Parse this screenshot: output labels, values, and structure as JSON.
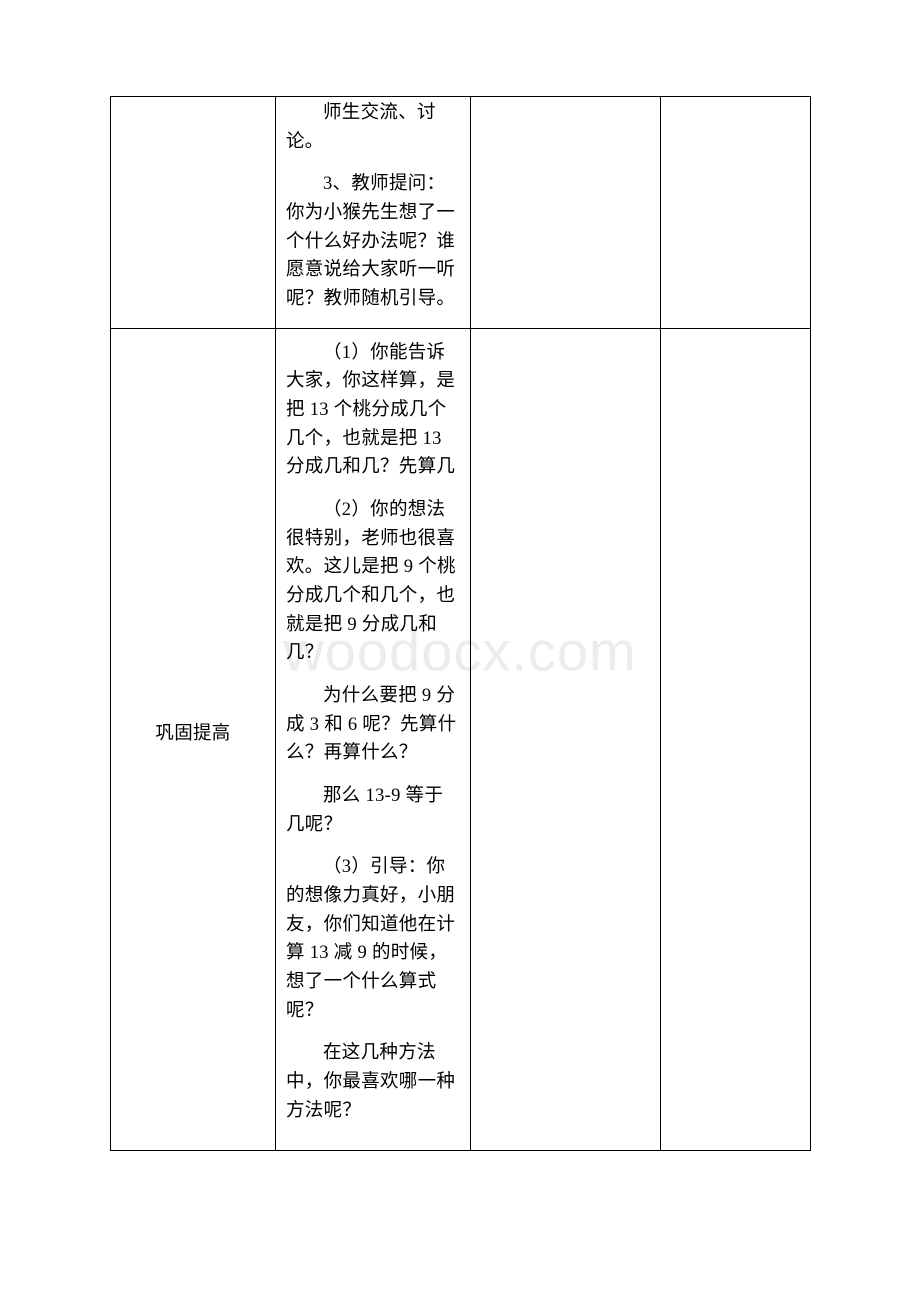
{
  "watermark": "woodocx.com",
  "table": {
    "columns": [
      "col-a",
      "col-b",
      "col-c",
      "col-d"
    ],
    "rows": [
      {
        "label": "",
        "content": {
          "paras": [
            "师生交流、讨论。",
            "3、教师提问：你为小猴先生想了一个什么好办法呢？谁愿意说给大家听一听呢？教师随机引导。"
          ]
        }
      },
      {
        "label": "巩固提高",
        "content": {
          "paras": [
            "（1）你能告诉大家，你这样算，是把 13 个桃分成几个几个，也就是把 13 分成几和几？先算几",
            "（2）你的想法很特别，老师也很喜欢。这儿是把 9 个桃分成几个和几个，也就是把 9 分成几和几？",
            "为什么要把 9 分成 3 和 6 呢？先算什么？再算什么？",
            "那么 13-9 等于几呢？",
            "（3）引导：你的想像力真好，小朋友，你们知道他在计算 13 减 9 的时候，想了一个什么算式呢？",
            "在这几种方法中，你最喜欢哪一种方法呢？"
          ]
        }
      }
    ]
  }
}
